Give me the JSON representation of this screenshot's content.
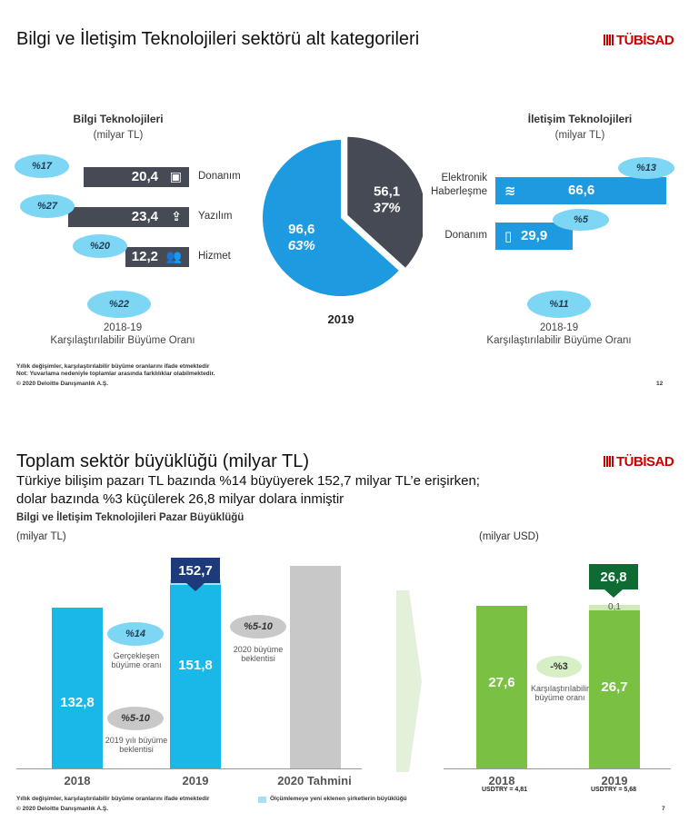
{
  "slide1": {
    "title": "Bilgi ve İletişim Teknolojileri sektörü alt kategorileri",
    "logo": "TÜBİSAD",
    "left_header": "Bilgi Teknolojileri",
    "left_unit": "(milyar TL)",
    "right_header": "İletişim Teknolojileri",
    "right_unit": "(milyar TL)",
    "pie_year": "2019",
    "left_total_growth": "%22",
    "right_total_growth": "%11",
    "left_growth_caption_1": "2018-19",
    "left_growth_caption_2": "Karşılaştırılabilir Büyüme Oranı",
    "right_growth_caption_1": "2018-19",
    "right_growth_caption_2": "Karşılaştırılabilir Büyüme Oranı",
    "note_1": "Yıllık değişimler, karşılaştırılabilir büyüme oranlarını ifade etmektedir",
    "note_2": "Not: Yuvarlama nedeniyle toplamlar arasında farklılıklar olabilmektedir.",
    "copyright": "© 2020 Deloitte Danışmanlık A.Ş.",
    "page": "12"
  },
  "slide2": {
    "title": "Toplam sektör büyüklüğü (milyar TL)",
    "subtitle_1": "Türkiye bilişim pazarı TL bazında %14 büyüyerek 152,7 milyar TL’e erişirken;",
    "subtitle_2": "dolar bazında %3 küçülerek 26,8 milyar dolara inmiştir",
    "chart_title": "Bilgi ve İletişim Teknolojileri Pazar Büyüklüğü",
    "logo": "TÜBİSAD",
    "unit_tl": "(milyar TL)",
    "unit_usd": "(milyar USD)",
    "tl_total_2019": "152,7",
    "usd_total_2019": "26,8",
    "growth_realized": "%14",
    "growth_realized_label": "Gerçekleşen büyüme oranı",
    "growth_expect_2020": "%5-10",
    "growth_expect_2020_label": "2020 büyüme beklentisi",
    "growth_expect_2019": "%5-10",
    "growth_expect_2019_label": "2019 yılı büyüme beklentisi",
    "usd_growth": "-%3",
    "usd_growth_label": "Karşılaştırılabilir büyüme oranı",
    "usdtry_2018": "USDTRY = 4,81",
    "usdtry_2019": "USDTRY = 5,68",
    "note": "Yıllık değişimler, karşılaştırılabilir büyüme oranlarını ifade etmektedir",
    "legend_new": "Ölçümlemeye yeni eklenen şirketlerin büyüklüğü",
    "copyright": "© 2020 Deloitte Danışmanlık A.Ş.",
    "page": "7"
  },
  "colors": {
    "dark": "#454a54",
    "blue": "#1e9be0",
    "cyan": "#19b8e8",
    "light_cyan": "#a9def5",
    "grey": "#c8c8c8",
    "green": "#7ac143",
    "light_green": "#cfe9b8",
    "navy": "#1d3a7a",
    "dark_green": "#0e6b34"
  },
  "chart_data": [
    {
      "type": "bar",
      "title": "Bilgi Teknolojileri",
      "unit": "(milyar TL)",
      "categories": [
        "Donanım",
        "Yazılım",
        "Hizmet"
      ],
      "values": [
        20.4,
        23.4,
        12.2
      ],
      "value_labels": [
        "20,4",
        "23,4",
        "12,2"
      ],
      "growth": [
        "%17",
        "%27",
        "%20"
      ],
      "icons": [
        "chip-icon",
        "download-icon",
        "people-icon"
      ]
    },
    {
      "type": "pie",
      "title": "2019",
      "slices": [
        {
          "name": "Bilgi Teknolojileri",
          "value": 56.1,
          "value_label": "56,1",
          "share": "37%",
          "color": "#454a54"
        },
        {
          "name": "İletişim Teknolojileri",
          "value": 96.6,
          "value_label": "96,6",
          "share": "63%",
          "color": "#1e9be0"
        }
      ]
    },
    {
      "type": "bar",
      "title": "İletişim Teknolojileri",
      "unit": "(milyar TL)",
      "categories": [
        "Elektronik Haberleşme",
        "Donanım"
      ],
      "category_lines": [
        [
          "Elektronik",
          "Haberleşme"
        ],
        [
          "Donanım"
        ]
      ],
      "values": [
        66.6,
        29.9
      ],
      "value_labels": [
        "66,6",
        "29,9"
      ],
      "growth": [
        "%13",
        "%5"
      ],
      "icons": [
        "wifi-icon",
        "phone-icon"
      ]
    },
    {
      "type": "bar",
      "title": "Bilgi ve İletişim Teknolojileri Pazar Büyüklüğü",
      "unit": "(milyar TL)",
      "categories": [
        "2018",
        "2019",
        "2020 Tahmini"
      ],
      "series": [
        {
          "values": [
            132.8,
            151.8,
            null
          ],
          "labels": [
            "132,8",
            "151,8",
            ""
          ]
        },
        {
          "name": "Ölçümlemeye yeni eklenen şirketlerin büyüklüğü",
          "values": [
            0,
            0.9,
            null
          ],
          "labels": [
            "",
            "0,9",
            ""
          ]
        },
        {
          "values": [
            null,
            null,
            160
          ],
          "labels": [
            "",
            "",
            ""
          ]
        }
      ]
    },
    {
      "type": "bar",
      "unit": "(milyar USD)",
      "categories": [
        "2018",
        "2019"
      ],
      "series": [
        {
          "values": [
            27.6,
            26.7
          ],
          "labels": [
            "27,6",
            "26,7"
          ]
        },
        {
          "values": [
            0,
            0.1
          ],
          "labels": [
            "",
            "0,1"
          ]
        }
      ]
    }
  ]
}
